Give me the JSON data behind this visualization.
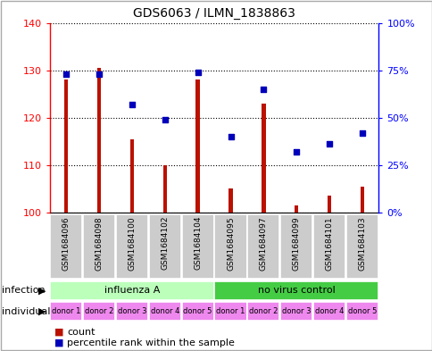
{
  "title": "GDS6063 / ILMN_1838863",
  "samples": [
    "GSM1684096",
    "GSM1684098",
    "GSM1684100",
    "GSM1684102",
    "GSM1684104",
    "GSM1684095",
    "GSM1684097",
    "GSM1684099",
    "GSM1684101",
    "GSM1684103"
  ],
  "counts": [
    128,
    130.5,
    115.5,
    110,
    128,
    105,
    123,
    101.5,
    103.5,
    105.5
  ],
  "percentiles": [
    73,
    73,
    57,
    49,
    74,
    40,
    65,
    32,
    36,
    42
  ],
  "ylim_left": [
    100,
    140
  ],
  "ylim_right": [
    0,
    100
  ],
  "yticks_left": [
    100,
    110,
    120,
    130,
    140
  ],
  "yticks_right": [
    0,
    25,
    50,
    75,
    100
  ],
  "ytick_labels_right": [
    "0%",
    "25%",
    "50%",
    "75%",
    "100%"
  ],
  "bar_color": "#bb1100",
  "dot_color": "#0000bb",
  "bar_base": 100,
  "bar_width": 0.12,
  "infection_groups": [
    {
      "label": "influenza A",
      "start": 0,
      "end": 5,
      "color": "#bbffbb"
    },
    {
      "label": "no virus control",
      "start": 5,
      "end": 10,
      "color": "#44cc44"
    }
  ],
  "individuals": [
    "donor 1",
    "donor 2",
    "donor 3",
    "donor 4",
    "donor 5",
    "donor 1",
    "donor 2",
    "donor 3",
    "donor 4",
    "donor 5"
  ],
  "individual_color": "#ee88ee",
  "sample_bg_color": "#cccccc",
  "legend_count_color": "#bb1100",
  "legend_dot_color": "#0000bb",
  "legend_count_label": "count",
  "legend_dot_label": "percentile rank within the sample",
  "infection_label": "infection",
  "individual_label": "individual",
  "figure_bg": "#ffffff",
  "border_color": "#aaaaaa"
}
